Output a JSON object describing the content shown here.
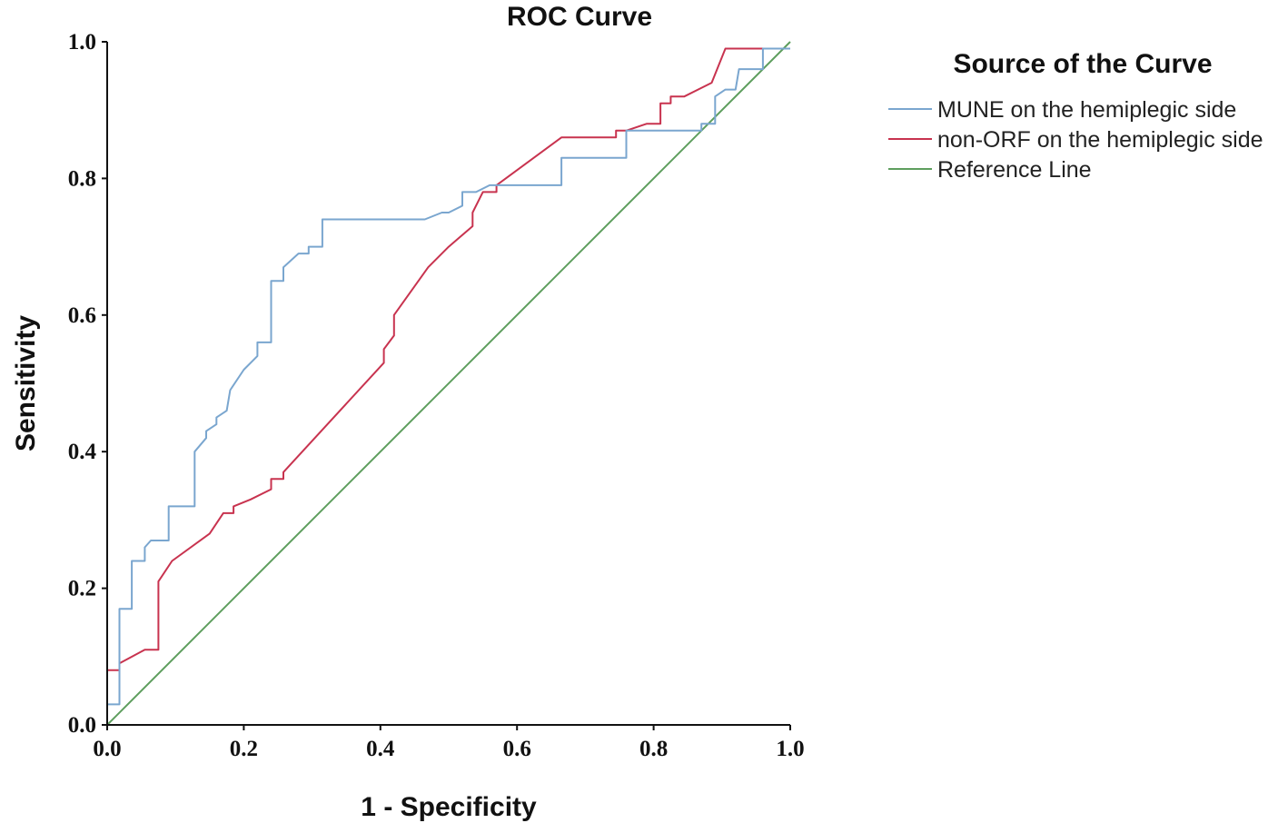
{
  "chart_data": {
    "type": "line",
    "title": "ROC Curve",
    "xlabel": "1 - Specificity",
    "ylabel": "Sensitivity",
    "xlim": [
      0,
      1
    ],
    "ylim": [
      0,
      1
    ],
    "x_ticks": [
      "0.0",
      "0.2",
      "0.4",
      "0.6",
      "0.8",
      "1.0"
    ],
    "y_ticks": [
      "0.0",
      "0.2",
      "0.4",
      "0.6",
      "0.8",
      "1.0"
    ],
    "legend": {
      "title": "Source of the Curve",
      "position": "right"
    },
    "series": [
      {
        "name": "MUNE on the hemiplegic side",
        "color": "#7aa6cf",
        "points": [
          [
            0,
            0
          ],
          [
            0,
            0.03
          ],
          [
            0.018,
            0.03
          ],
          [
            0.018,
            0.17
          ],
          [
            0.036,
            0.17
          ],
          [
            0.036,
            0.24
          ],
          [
            0.055,
            0.24
          ],
          [
            0.055,
            0.26
          ],
          [
            0.064,
            0.27
          ],
          [
            0.09,
            0.27
          ],
          [
            0.09,
            0.32
          ],
          [
            0.128,
            0.32
          ],
          [
            0.128,
            0.4
          ],
          [
            0.145,
            0.42
          ],
          [
            0.145,
            0.43
          ],
          [
            0.16,
            0.44
          ],
          [
            0.16,
            0.45
          ],
          [
            0.175,
            0.46
          ],
          [
            0.18,
            0.49
          ],
          [
            0.2,
            0.52
          ],
          [
            0.22,
            0.54
          ],
          [
            0.22,
            0.56
          ],
          [
            0.24,
            0.56
          ],
          [
            0.24,
            0.65
          ],
          [
            0.258,
            0.65
          ],
          [
            0.258,
            0.67
          ],
          [
            0.28,
            0.69
          ],
          [
            0.295,
            0.69
          ],
          [
            0.295,
            0.7
          ],
          [
            0.315,
            0.7
          ],
          [
            0.315,
            0.74
          ],
          [
            0.465,
            0.74
          ],
          [
            0.49,
            0.75
          ],
          [
            0.5,
            0.75
          ],
          [
            0.52,
            0.76
          ],
          [
            0.52,
            0.78
          ],
          [
            0.54,
            0.78
          ],
          [
            0.56,
            0.79
          ],
          [
            0.665,
            0.79
          ],
          [
            0.665,
            0.83
          ],
          [
            0.76,
            0.83
          ],
          [
            0.76,
            0.87
          ],
          [
            0.87,
            0.87
          ],
          [
            0.87,
            0.88
          ],
          [
            0.89,
            0.88
          ],
          [
            0.89,
            0.92
          ],
          [
            0.905,
            0.93
          ],
          [
            0.92,
            0.93
          ],
          [
            0.925,
            0.96
          ],
          [
            0.96,
            0.96
          ],
          [
            0.96,
            0.99
          ],
          [
            1.0,
            0.99
          ]
        ]
      },
      {
        "name": "non-ORF on the hemiplegic side",
        "color": "#c8334f",
        "points": [
          [
            0,
            0
          ],
          [
            0,
            0.08
          ],
          [
            0.018,
            0.08
          ],
          [
            0.018,
            0.09
          ],
          [
            0.055,
            0.11
          ],
          [
            0.075,
            0.11
          ],
          [
            0.075,
            0.21
          ],
          [
            0.095,
            0.24
          ],
          [
            0.15,
            0.28
          ],
          [
            0.17,
            0.31
          ],
          [
            0.185,
            0.31
          ],
          [
            0.185,
            0.32
          ],
          [
            0.21,
            0.33
          ],
          [
            0.24,
            0.345
          ],
          [
            0.24,
            0.36
          ],
          [
            0.258,
            0.36
          ],
          [
            0.258,
            0.37
          ],
          [
            0.405,
            0.53
          ],
          [
            0.405,
            0.55
          ],
          [
            0.42,
            0.57
          ],
          [
            0.42,
            0.6
          ],
          [
            0.47,
            0.67
          ],
          [
            0.5,
            0.7
          ],
          [
            0.535,
            0.73
          ],
          [
            0.535,
            0.75
          ],
          [
            0.55,
            0.78
          ],
          [
            0.57,
            0.78
          ],
          [
            0.57,
            0.79
          ],
          [
            0.665,
            0.86
          ],
          [
            0.745,
            0.86
          ],
          [
            0.745,
            0.87
          ],
          [
            0.76,
            0.87
          ],
          [
            0.79,
            0.88
          ],
          [
            0.81,
            0.88
          ],
          [
            0.81,
            0.91
          ],
          [
            0.825,
            0.91
          ],
          [
            0.825,
            0.92
          ],
          [
            0.845,
            0.92
          ],
          [
            0.885,
            0.94
          ],
          [
            0.905,
            0.99
          ],
          [
            1.0,
            0.99
          ]
        ]
      },
      {
        "name": "Reference Line",
        "color": "#5e9e5e",
        "points": [
          [
            0,
            0
          ],
          [
            1,
            1
          ]
        ]
      }
    ]
  }
}
